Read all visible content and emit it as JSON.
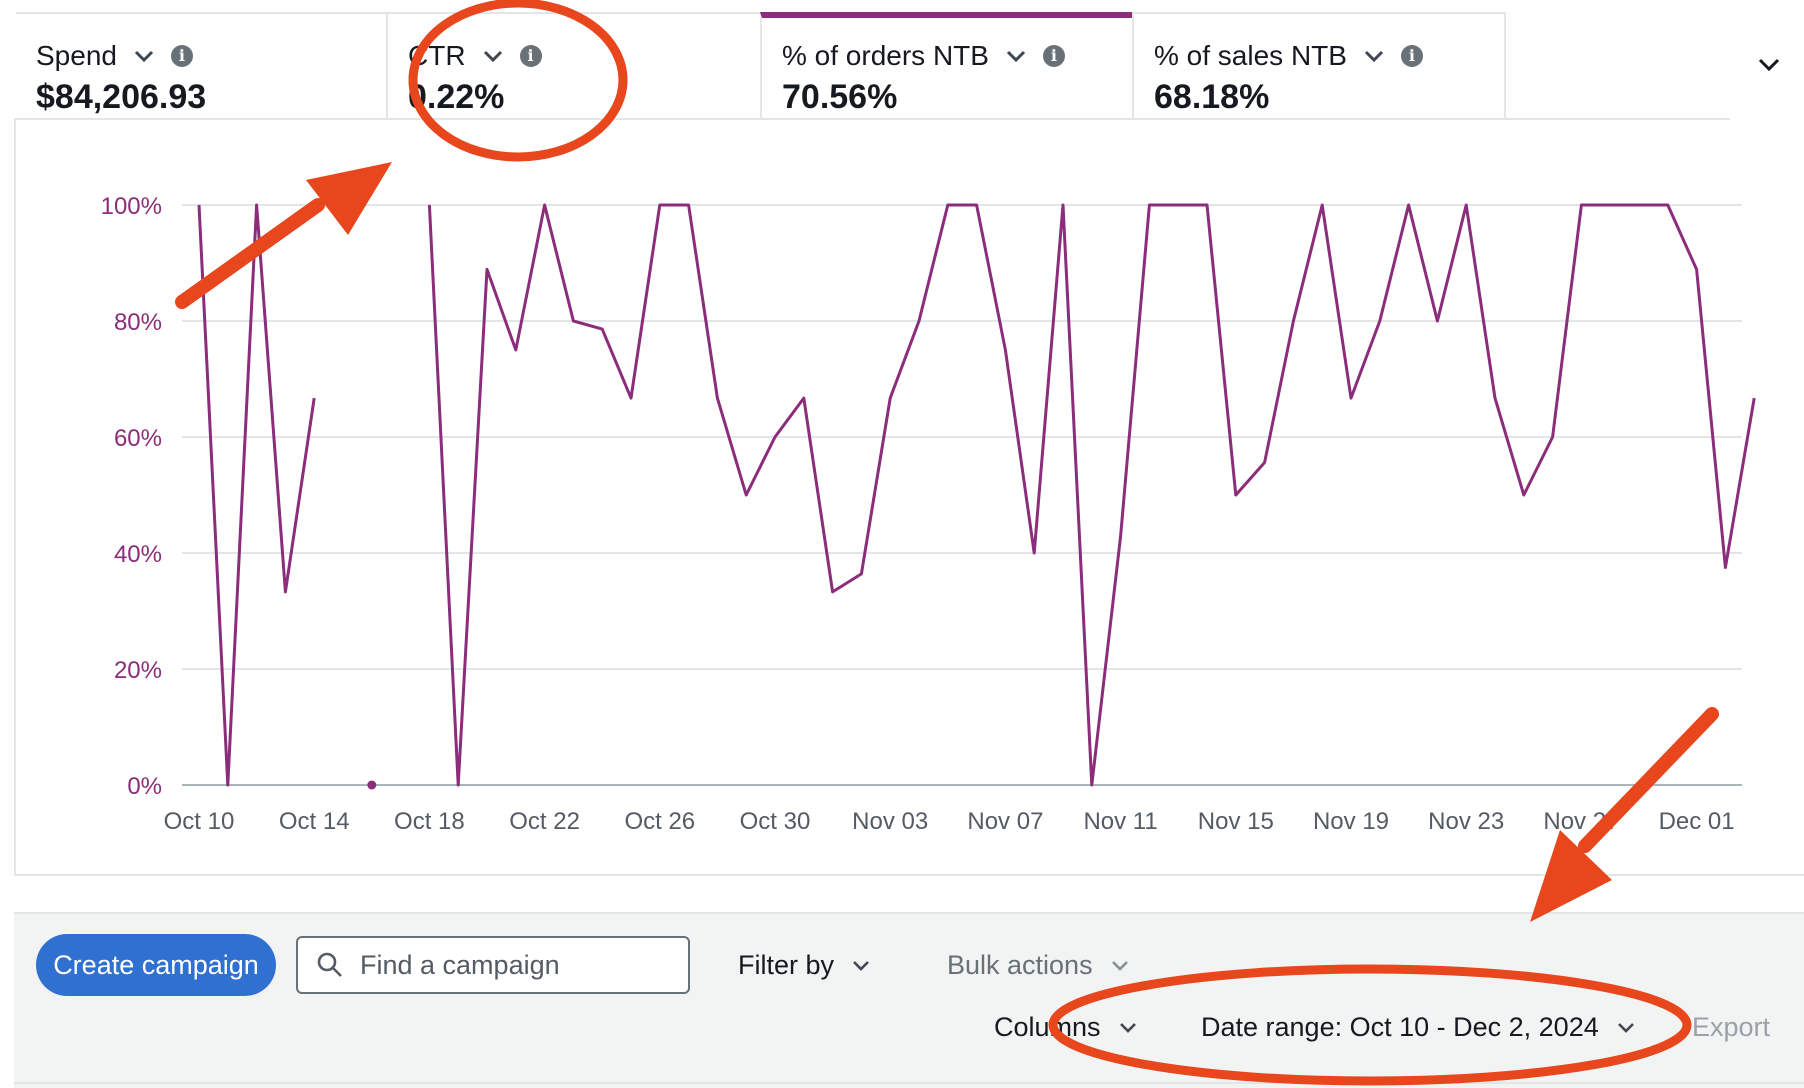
{
  "metrics": [
    {
      "label": "Spend",
      "value": "$84,206.93"
    },
    {
      "label": "CTR",
      "value": "0.22%"
    },
    {
      "label": "% of orders NTB",
      "value": "70.56%"
    },
    {
      "label": "% of sales NTB",
      "value": "68.18%"
    }
  ],
  "colors": {
    "accent": "#8b2d7a",
    "primary_button": "#2f70d0",
    "annotation": "#e8461c"
  },
  "chart_data": {
    "type": "line",
    "title": "",
    "xlabel": "",
    "ylabel": "",
    "y_tick_labels": [
      "0%",
      "20%",
      "40%",
      "60%",
      "80%",
      "100%"
    ],
    "x_tick_labels": [
      "Oct 10",
      "Oct 14",
      "Oct 18",
      "Oct 22",
      "Oct 26",
      "Oct 30",
      "Nov 03",
      "Nov 07",
      "Nov 11",
      "Nov 15",
      "Nov 19",
      "Nov 23",
      "Nov 27",
      "Dec 01"
    ],
    "ylim": [
      0,
      100
    ],
    "xlim": [
      "2024-10-10",
      "2024-12-02"
    ],
    "grid": true,
    "series": [
      {
        "color": "#8b2d7a",
        "segments": [
          [
            [
              "2024-10-10",
              100
            ],
            [
              "2024-10-11",
              0
            ],
            [
              "2024-10-12",
              100
            ],
            [
              "2024-10-13",
              33.3
            ],
            [
              "2024-10-14",
              66.7
            ]
          ],
          [
            [
              "2024-10-16",
              0
            ]
          ],
          [
            [
              "2024-10-18",
              100
            ],
            [
              "2024-10-19",
              0
            ],
            [
              "2024-10-20",
              88.9
            ],
            [
              "2024-10-21",
              75
            ],
            [
              "2024-10-22",
              100
            ],
            [
              "2024-10-23",
              80
            ],
            [
              "2024-10-24",
              78.6
            ],
            [
              "2024-10-25",
              66.7
            ],
            [
              "2024-10-26",
              100
            ],
            [
              "2024-10-27",
              100
            ],
            [
              "2024-10-28",
              66.7
            ],
            [
              "2024-10-29",
              50
            ],
            [
              "2024-10-30",
              60
            ],
            [
              "2024-10-31",
              66.7
            ],
            [
              "2024-11-01",
              33.3
            ],
            [
              "2024-11-02",
              36.4
            ],
            [
              "2024-11-03",
              66.7
            ],
            [
              "2024-11-04",
              80
            ],
            [
              "2024-11-05",
              100
            ],
            [
              "2024-11-06",
              100
            ],
            [
              "2024-11-07",
              75
            ],
            [
              "2024-11-08",
              40
            ],
            [
              "2024-11-09",
              100
            ],
            [
              "2024-11-10",
              0
            ],
            [
              "2024-11-11",
              42.9
            ],
            [
              "2024-11-12",
              100
            ],
            [
              "2024-11-13",
              100
            ],
            [
              "2024-11-14",
              100
            ],
            [
              "2024-11-15",
              50
            ],
            [
              "2024-11-16",
              55.6
            ],
            [
              "2024-11-17",
              80
            ],
            [
              "2024-11-18",
              100
            ],
            [
              "2024-11-19",
              66.7
            ],
            [
              "2024-11-20",
              80
            ],
            [
              "2024-11-21",
              100
            ],
            [
              "2024-11-22",
              80
            ],
            [
              "2024-11-23",
              100
            ],
            [
              "2024-11-24",
              66.7
            ],
            [
              "2024-11-25",
              50
            ],
            [
              "2024-11-26",
              60
            ],
            [
              "2024-11-27",
              100
            ],
            [
              "2024-11-28",
              100
            ],
            [
              "2024-11-29",
              100
            ],
            [
              "2024-11-30",
              100
            ],
            [
              "2024-12-01",
              88.9
            ],
            [
              "2024-12-02",
              37.5
            ],
            [
              "2024-12-03",
              66.7
            ]
          ]
        ]
      }
    ]
  },
  "toolbar": {
    "create_label": "Create campaign",
    "search_placeholder": "Find a campaign",
    "filter_label": "Filter by",
    "bulk_label": "Bulk actions",
    "columns_label": "Columns",
    "date_range_label": "Date range: Oct 10 - Dec 2, 2024",
    "export_label": "Export"
  }
}
